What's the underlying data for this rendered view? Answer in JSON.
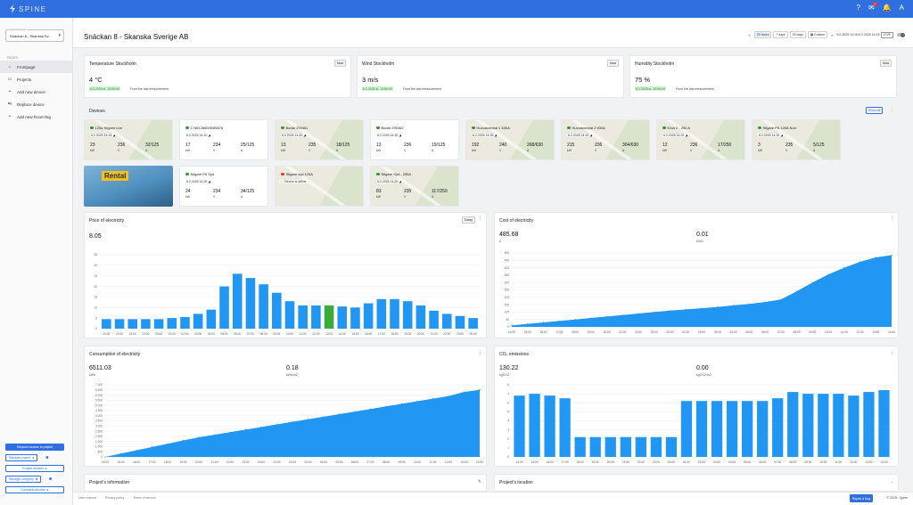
{
  "app": {
    "logo": "SPINE"
  },
  "topbar": {
    "help": "?",
    "chat_count": "1",
    "user": "A"
  },
  "sidebar": {
    "project_label": "Active project",
    "project_value": "Snäckan 8 - Skanska Sv...",
    "pages_label": "PAGES",
    "items": [
      {
        "label": "Frontpage"
      },
      {
        "label": "Projects"
      },
      {
        "label": "Add new device"
      },
      {
        "label": "Replace device"
      },
      {
        "label": "Add new RoomTag"
      }
    ],
    "request_access": "Request access to project",
    "manage_project": "Manage project",
    "project_devices": "Project devices",
    "manage_company": "Manage company",
    "company_devices": "Company devices"
  },
  "header": {
    "title": "Snäckan 8 - Skanska Sverige AB",
    "ranges": [
      "24 hours",
      "7 days",
      "30 days",
      "Custom"
    ],
    "date_range": "6.2.2025 14:15-6.2.2025 14:15",
    "live": "LIVE"
  },
  "weather": [
    {
      "title": "Temperature Stockholm",
      "badge": "Now",
      "value": "4 °C",
      "timestamp": "6.2.2025 kl. 13:55:40",
      "note": "From the last measurement"
    },
    {
      "title": "Wind Stockholm",
      "badge": "Now",
      "value": "3 m/s",
      "timestamp": "6.2.2025 kl. 13:55:40",
      "note": "From the last measurement"
    },
    {
      "title": "Humidity Stockholm",
      "badge": "Now",
      "value": "75 %",
      "timestamp": "6.2.2025 kl. 13:55:40",
      "note": "From the last measurement"
    }
  ],
  "devices_section": {
    "title": "Devices",
    "show_all": "Show all"
  },
  "devices": [
    {
      "name": "125a Stigare norr",
      "status": "green",
      "ts": "6.2.2025 14:14",
      "kw": "23",
      "v": "236",
      "a": "32/125",
      "map": true
    },
    {
      "name": "17d512860054f5876",
      "status": "green",
      "ts": "6.2.2025 14:10",
      "kw": "17",
      "v": "234",
      "a": "25/125",
      "map": false
    },
    {
      "name": "Bodar 290461",
      "status": "green",
      "ts": "6.2.2025 14:20",
      "kw": "13",
      "v": "235",
      "a": "18/125",
      "map": true
    },
    {
      "name": "Bodar 290462",
      "status": "green",
      "ts": "6.2.2025 14:20",
      "kw": "13",
      "v": "236",
      "a": "19/125",
      "map": false
    },
    {
      "name": "Huvudcentral 1 630A",
      "status": "green",
      "ts": "6.2.2025 14:25",
      "kw": "192",
      "v": "240",
      "a": "268/630",
      "map": true
    },
    {
      "name": "Huvudcentral 2 630A",
      "status": "green",
      "ts": "6.2.2025 14:20",
      "kw": "215",
      "v": "236",
      "a": "304/630",
      "map": true
    },
    {
      "name": "Kran 2 - 250 A",
      "status": "green",
      "ts": "6.2.2025 14:20",
      "kw": "12",
      "v": "236",
      "a": "17/250",
      "map": true
    },
    {
      "name": "Stigare P6 125A Norr",
      "status": "green",
      "ts": "6.2.2025 14:20",
      "kw": "3",
      "v": "235",
      "a": "5/125",
      "map": true
    },
    {
      "name": "Stigare P6 Syd",
      "status": "green",
      "ts": "6.2.2025 14:20",
      "kw": "24",
      "v": "234",
      "a": "34/125",
      "map": false
    },
    {
      "name": "Stigare syd 125A",
      "status": "red",
      "ts": "",
      "offline": "Device is offline",
      "map": true
    },
    {
      "name": "Stigare Syd - 250A",
      "status": "green",
      "ts": "6.2.2025 14:20",
      "kw": "83",
      "v": "235",
      "a": "117/250",
      "map": true
    }
  ],
  "units": {
    "kw": "kW",
    "v": "V",
    "a": "A"
  },
  "photo": {
    "sign": "Rental"
  },
  "charts": {
    "price": {
      "title": "Price of electricity",
      "badge": "Today",
      "value": "8.05"
    },
    "cost": {
      "title": "Cost of electricity",
      "value1": "485.68",
      "unit1": "£",
      "value2": "0.01",
      "unit2": "£/m2"
    },
    "consumption": {
      "title": "Consumption of electricity",
      "value1": "6511.03",
      "unit1": "kWh",
      "value2": "0.18",
      "unit2": "kWh/m2"
    },
    "co2": {
      "title": "CO₂ emissions",
      "value1": "130.22",
      "unit1": "kgCO2",
      "value2": "0.00",
      "unit2": "kgCO2/m2"
    }
  },
  "chart_data": [
    {
      "type": "bar",
      "title": "Price of electricity",
      "categories": [
        "20:00",
        "21:00",
        "22:00",
        "23:00",
        "00:00",
        "01:00",
        "02:00",
        "03:00",
        "04:00",
        "05:00",
        "06:00",
        "07:00",
        "08:00",
        "09:00",
        "10:00",
        "11:00",
        "12:00",
        "13:00",
        "14:00",
        "15:00",
        "16:00",
        "17:00",
        "18:00",
        "19:00",
        "20:00",
        "21:00",
        "22:00",
        "23:00",
        "00:00"
      ],
      "values": [
        4.5,
        4.5,
        4.5,
        4.5,
        4.5,
        5,
        5.5,
        7,
        9,
        20,
        26,
        24,
        21,
        17,
        13,
        11,
        11,
        11,
        10.5,
        10,
        12,
        14,
        14,
        13,
        11,
        8.5,
        7,
        6,
        5
      ],
      "highlight_index": 17,
      "highlight_color": "#3cab3c",
      "color": "#2196f3",
      "ylim": [
        0,
        35
      ],
      "yticks": [
        0,
        5,
        10,
        15,
        20,
        25,
        30,
        35
      ]
    },
    {
      "type": "area",
      "title": "Cost of electricity",
      "x": [
        "14:00",
        "15:00",
        "16:00",
        "17:00",
        "18:00",
        "19:00",
        "20:00",
        "21:00",
        "22:00",
        "23:00",
        "00:00",
        "01:00",
        "02:00",
        "03:00",
        "04:00",
        "05:00",
        "06:00",
        "07:00",
        "08:00",
        "09:00",
        "10:00",
        "11:00",
        "12:00",
        "13:00",
        "14:00"
      ],
      "values": [
        10,
        20,
        30,
        40,
        50,
        60,
        70,
        80,
        90,
        100,
        110,
        118,
        126,
        135,
        145,
        155,
        168,
        185,
        240,
        300,
        355,
        400,
        440,
        470,
        485
      ],
      "color": "#2196f3",
      "ylim": [
        0,
        500
      ],
      "yticks": [
        0,
        50,
        100,
        150,
        200,
        250,
        300,
        350,
        400,
        450,
        500
      ]
    },
    {
      "type": "area",
      "title": "Consumption of electricity",
      "x": [
        "14:00",
        "15:00",
        "16:00",
        "17:00",
        "18:00",
        "19:00",
        "20:00",
        "21:00",
        "22:00",
        "23:00",
        "00:00",
        "01:00",
        "02:00",
        "03:00",
        "04:00",
        "05:00",
        "06:00",
        "07:00",
        "08:00",
        "09:00",
        "10:00",
        "11:00",
        "12:00",
        "13:00",
        "14:00"
      ],
      "values": [
        0,
        320,
        640,
        960,
        1280,
        1600,
        1900,
        2150,
        2400,
        2650,
        2900,
        3150,
        3400,
        3650,
        3900,
        4150,
        4400,
        4650,
        4900,
        5150,
        5400,
        5650,
        5900,
        6300,
        6511
      ],
      "color": "#2196f3",
      "ylim": [
        0,
        7000
      ],
      "yticks": [
        0,
        500,
        1000,
        1500,
        2000,
        2500,
        3000,
        3500,
        4000,
        4500,
        5000,
        5500,
        6000,
        6500,
        7000
      ]
    },
    {
      "type": "bar",
      "title": "CO₂ emissions",
      "categories": [
        "14:00",
        "15:00",
        "16:00",
        "17:00",
        "18:00",
        "19:00",
        "20:00",
        "21:00",
        "22:00",
        "23:00",
        "00:00",
        "01:00",
        "02:00",
        "03:00",
        "04:00",
        "05:00",
        "06:00",
        "07:00",
        "08:00",
        "09:00",
        "10:00",
        "11:00",
        "12:00",
        "13:00",
        "14:00"
      ],
      "values": [
        6.8,
        7.0,
        6.8,
        6.5,
        2.2,
        2.2,
        2.2,
        2.2,
        2.2,
        2.2,
        2.2,
        6.2,
        6.2,
        6.2,
        6.2,
        6.2,
        6.2,
        6.5,
        7.2,
        7.0,
        7.0,
        7.0,
        6.8,
        7.2,
        7.4
      ],
      "color": "#2196f3",
      "ylim": [
        0,
        8
      ],
      "yticks": [
        0,
        1,
        2,
        3,
        4,
        5,
        6,
        7,
        8
      ]
    }
  ],
  "bottom_cards": {
    "project_info": "Project's information",
    "project_location": "Project's location"
  },
  "footer": {
    "links": [
      "User manual",
      "Privacy policy",
      "Terms of service"
    ],
    "report_bug": "Report a bug",
    "copyright": "© 2025 - Spine"
  }
}
